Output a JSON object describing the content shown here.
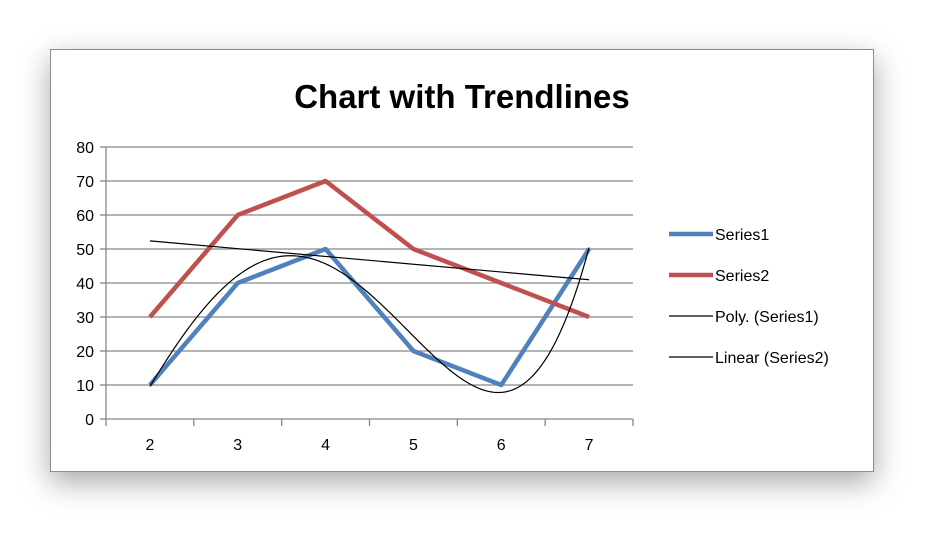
{
  "chart_data": {
    "type": "line",
    "title": "Chart with Trendlines",
    "categories": [
      "2",
      "3",
      "4",
      "5",
      "6",
      "7"
    ],
    "series": [
      {
        "name": "Series1",
        "values": [
          10,
          40,
          50,
          20,
          10,
          50
        ],
        "color": "#4f81bd"
      },
      {
        "name": "Series2",
        "values": [
          30,
          60,
          70,
          50,
          40,
          30
        ],
        "color": "#c0504d"
      }
    ],
    "trendlines": [
      {
        "name": "Poly. (Series1)",
        "type": "polynomial",
        "of": "Series1",
        "color": "#000000"
      },
      {
        "name": "Linear (Series2)",
        "type": "linear",
        "of": "Series2",
        "color": "#000000"
      }
    ],
    "ylim": [
      0,
      80
    ],
    "yticks": [
      "0",
      "10",
      "20",
      "30",
      "40",
      "50",
      "60",
      "70",
      "80"
    ],
    "grid": true,
    "legend": "right"
  }
}
